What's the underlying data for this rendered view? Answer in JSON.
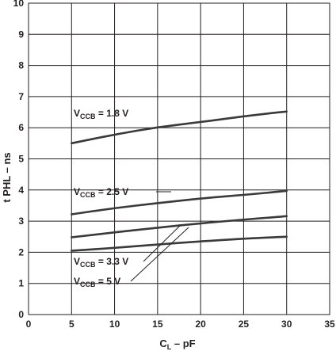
{
  "chart_data": {
    "type": "line",
    "xlabel": {
      "main": "C",
      "sub": "L",
      "rest": " – pF"
    },
    "ylabel": "t PHL – ns",
    "xlim": [
      0,
      35
    ],
    "ylim": [
      0,
      10
    ],
    "xticks": [
      "0",
      "5",
      "10",
      "15",
      "20",
      "25",
      "30",
      "35"
    ],
    "yticks": [
      "0",
      "1",
      "2",
      "3",
      "4",
      "5",
      "6",
      "7",
      "8",
      "9",
      "10"
    ],
    "grid": true,
    "series": [
      {
        "label": {
          "pre": "V",
          "sub": "CCB",
          "post": " = 1.8 V"
        },
        "x": [
          5,
          10,
          15,
          20,
          25,
          30
        ],
        "y": [
          5.5,
          5.78,
          6.02,
          6.18,
          6.37,
          6.52
        ]
      },
      {
        "label": {
          "pre": "V",
          "sub": "CCB",
          "post": " = 2.5 V"
        },
        "x": [
          5,
          10,
          15,
          20,
          25,
          30
        ],
        "y": [
          3.22,
          3.42,
          3.58,
          3.73,
          3.84,
          3.97
        ]
      },
      {
        "label": {
          "pre": "V",
          "sub": "CCB",
          "post": " = 3.3 V"
        },
        "x": [
          5,
          10,
          15,
          20,
          25,
          30
        ],
        "y": [
          2.48,
          2.64,
          2.79,
          2.93,
          3.05,
          3.16
        ]
      },
      {
        "label": {
          "pre": "V",
          "sub": "CCB",
          "post": " = 5 V"
        },
        "x": [
          5,
          10,
          15,
          20,
          25,
          30
        ],
        "y": [
          2.05,
          2.14,
          2.25,
          2.35,
          2.44,
          2.5
        ]
      }
    ]
  }
}
